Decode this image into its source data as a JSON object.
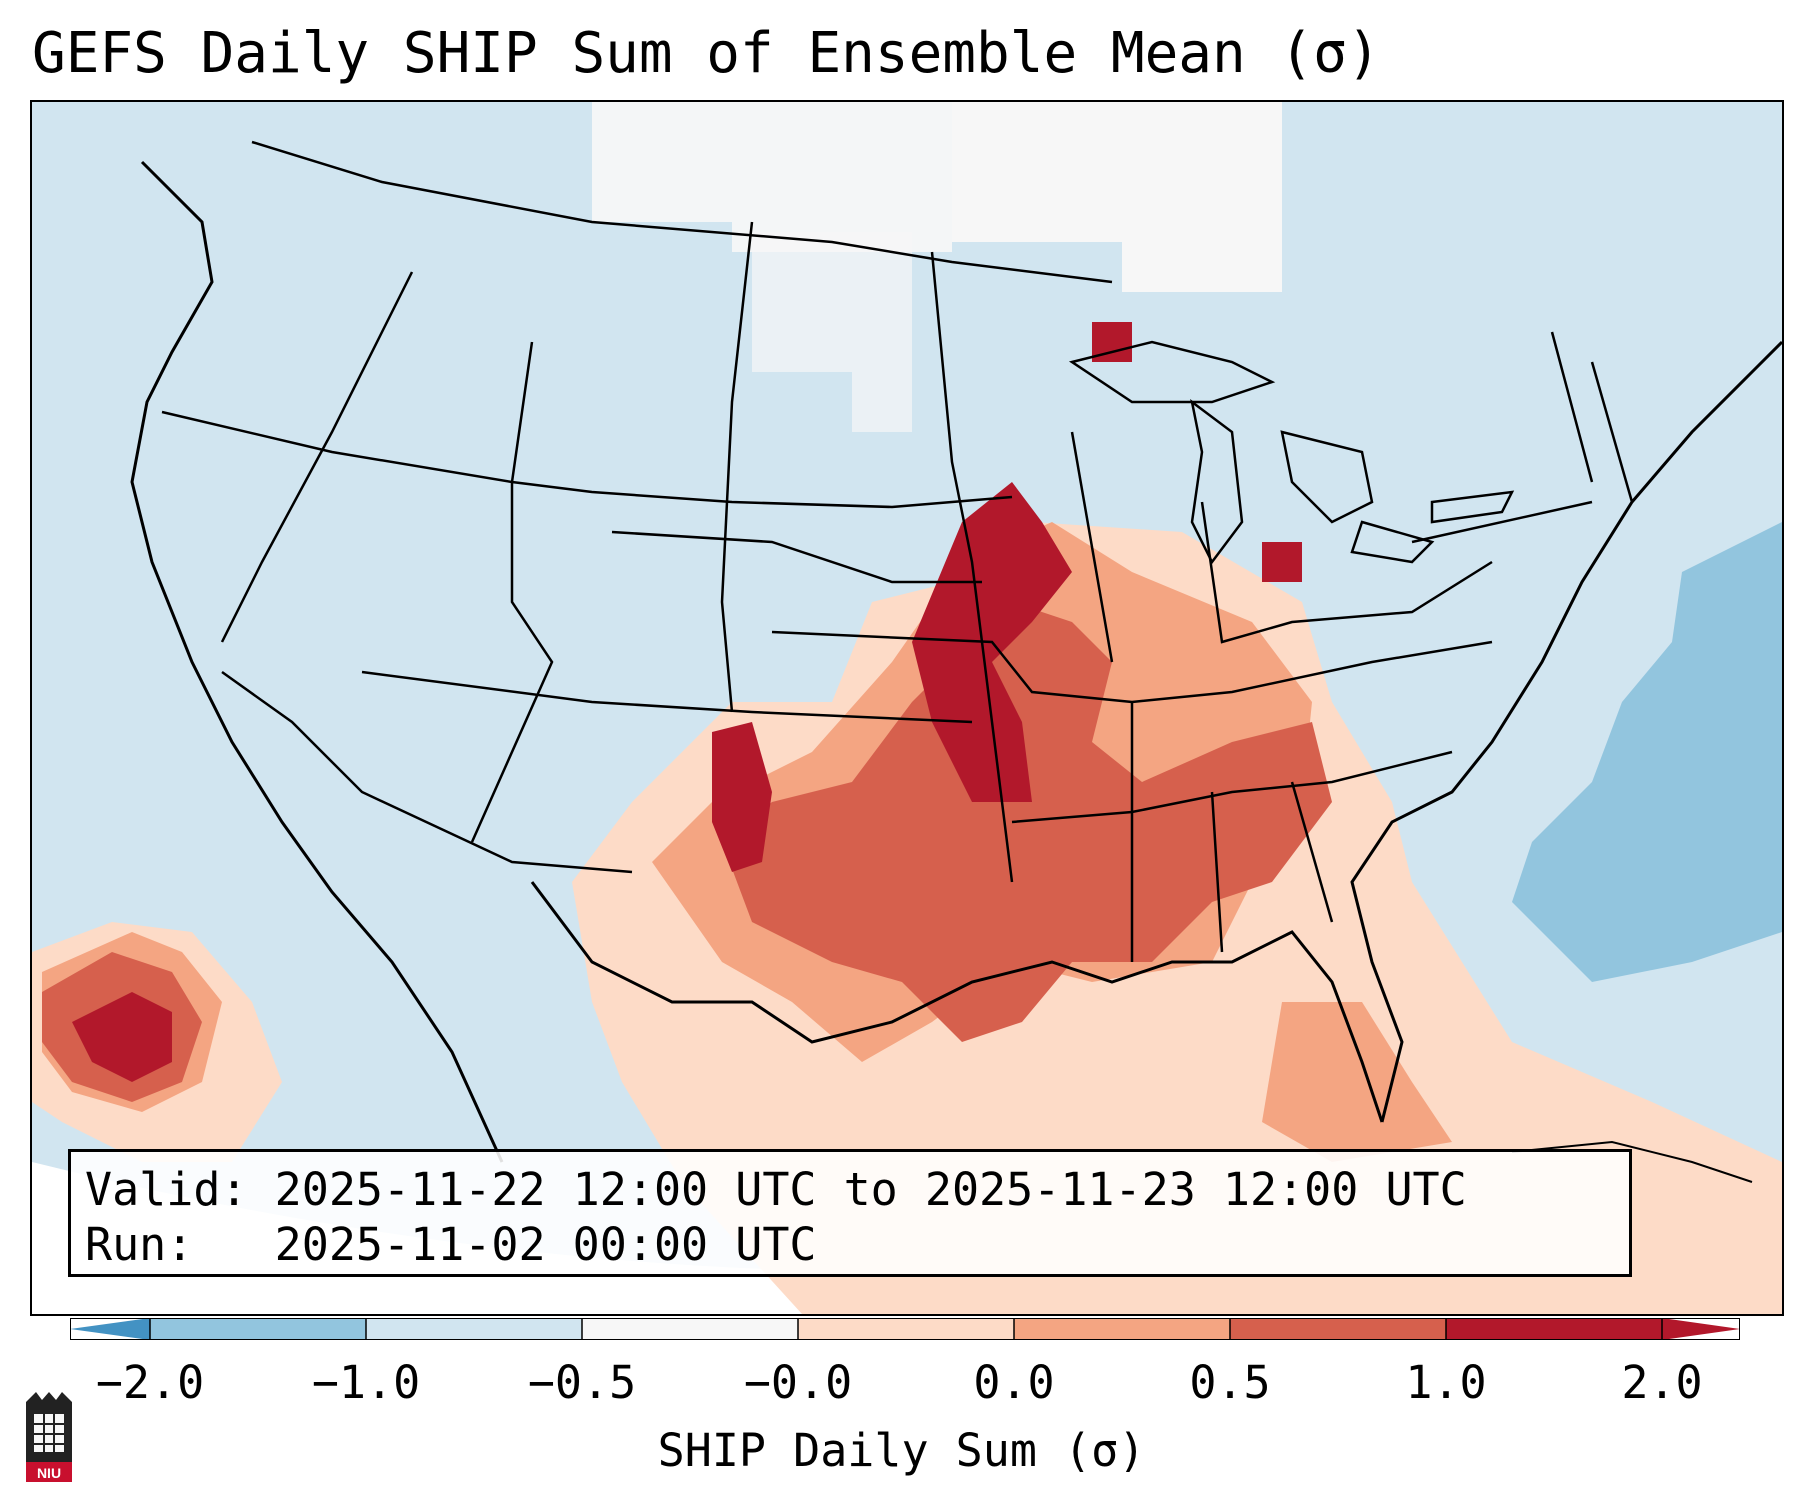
{
  "title": "GEFS Daily SHIP Sum of Ensemble Mean (σ)",
  "info": {
    "valid_label": "Valid:",
    "valid_value": "2025-11-22 12:00 UTC to 2025-11-23 12:00 UTC",
    "run_label": "Run:",
    "run_value": "2025-11-02 00:00 UTC"
  },
  "colorbar": {
    "label": "SHIP Daily Sum (σ)",
    "ticks": [
      "−2.0",
      "−1.0",
      "−0.5",
      "−0.0",
      "0.0",
      "0.5",
      "1.0",
      "2.0"
    ],
    "colors": [
      "#4392c3",
      "#92c5de",
      "#d1e5f0",
      "#f7f7f7",
      "#fddbc7",
      "#f4a582",
      "#d6604d",
      "#b2182b"
    ],
    "extend": "both"
  },
  "logo_text": "NIU",
  "map_colors": {
    "ocean_land_default": "#d1e5f0",
    "neutral": "#f7f7f7",
    "light_pos": "#fddbc7",
    "mid_pos": "#f4a582",
    "high_pos": "#d6604d",
    "max_pos": "#b2182b",
    "neg": "#92c5de"
  }
}
